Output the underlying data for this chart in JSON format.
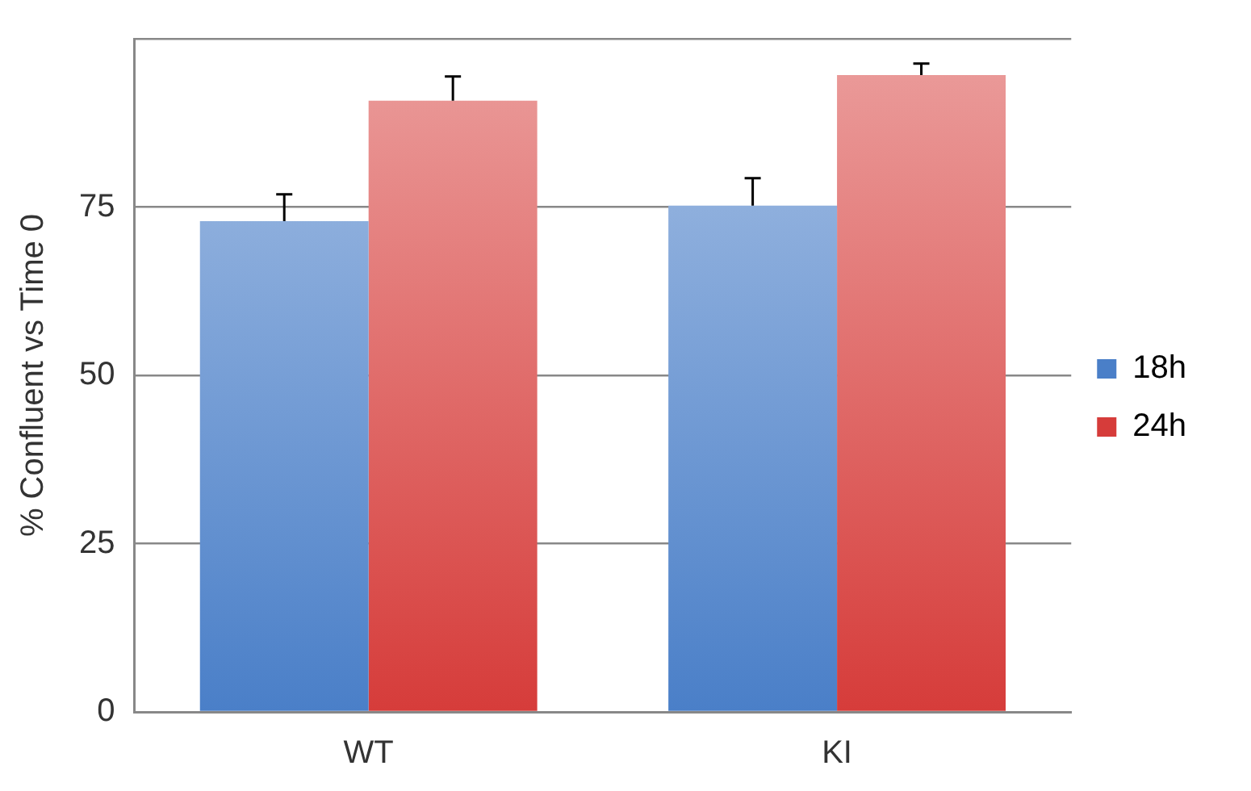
{
  "chart_data": {
    "type": "bar",
    "ylabel": "% Confluent vs Time 0",
    "categories": [
      "WT",
      "KI"
    ],
    "series": [
      {
        "name": "18h",
        "color": "#4a7fc8",
        "values": [
          72.9,
          75.2
        ],
        "errors": [
          4.0,
          4.1
        ]
      },
      {
        "name": "24h",
        "color": "#d63c3a",
        "values": [
          90.8,
          94.6
        ],
        "errors": [
          3.6,
          1.7
        ]
      }
    ],
    "ylim": [
      0,
      100
    ],
    "yticks": [
      0,
      25,
      50,
      75,
      {
        "value": 100,
        "label": null
      }
    ],
    "grid": "y",
    "legend": "right"
  }
}
